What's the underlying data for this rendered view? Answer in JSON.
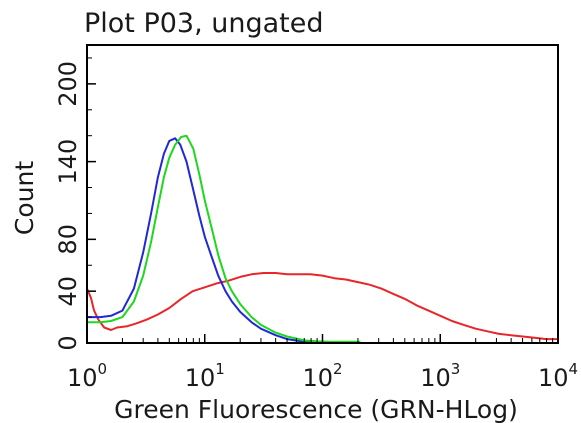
{
  "chart_data": {
    "type": "line",
    "title": "Plot P03, ungated",
    "xlabel": "Green Fluorescence (GRN-HLog)",
    "ylabel": "Count",
    "x_scale": "log",
    "xlim": [
      1,
      10000
    ],
    "ylim": [
      0,
      230
    ],
    "x_ticks": [
      {
        "base": "10",
        "exp": "0",
        "value": 1
      },
      {
        "base": "10",
        "exp": "1",
        "value": 10
      },
      {
        "base": "10",
        "exp": "2",
        "value": 100
      },
      {
        "base": "10",
        "exp": "3",
        "value": 1000
      },
      {
        "base": "10",
        "exp": "4",
        "value": 10000
      }
    ],
    "y_ticks": [
      {
        "label": "0",
        "value": 0
      },
      {
        "label": "40",
        "value": 40
      },
      {
        "label": "80",
        "value": 80
      },
      {
        "label": "140",
        "value": 140
      },
      {
        "label": "200",
        "value": 200
      }
    ],
    "grid": false,
    "legend": "none",
    "series": [
      {
        "color": "#e8262a",
        "points": [
          [
            1,
            42
          ],
          [
            1.08,
            35
          ],
          [
            1.15,
            25
          ],
          [
            1.25,
            18
          ],
          [
            1.4,
            12
          ],
          [
            1.6,
            10
          ],
          [
            1.8,
            12
          ],
          [
            2.2,
            13
          ],
          [
            2.6,
            15
          ],
          [
            3.2,
            18
          ],
          [
            4,
            22
          ],
          [
            5,
            27
          ],
          [
            6.3,
            34
          ],
          [
            7.9,
            40
          ],
          [
            10,
            43
          ],
          [
            12.6,
            46
          ],
          [
            15.8,
            48
          ],
          [
            20,
            51
          ],
          [
            25,
            53
          ],
          [
            31.6,
            54
          ],
          [
            40,
            54
          ],
          [
            50,
            53
          ],
          [
            63,
            53
          ],
          [
            79,
            53
          ],
          [
            100,
            52
          ],
          [
            126,
            50
          ],
          [
            158,
            49
          ],
          [
            200,
            47
          ],
          [
            251,
            45
          ],
          [
            316,
            42
          ],
          [
            398,
            38
          ],
          [
            501,
            34
          ],
          [
            631,
            29
          ],
          [
            794,
            25
          ],
          [
            1000,
            21
          ],
          [
            1259,
            17
          ],
          [
            1585,
            14
          ],
          [
            2000,
            11
          ],
          [
            2512,
            9
          ],
          [
            3162,
            7
          ],
          [
            3981,
            6
          ],
          [
            5012,
            5
          ],
          [
            6310,
            4
          ],
          [
            7943,
            3
          ],
          [
            10000,
            3
          ]
        ]
      },
      {
        "color": "#2028d8",
        "points": [
          [
            1,
            20
          ],
          [
            1.3,
            20
          ],
          [
            1.6,
            21
          ],
          [
            2,
            25
          ],
          [
            2.5,
            42
          ],
          [
            3,
            70
          ],
          [
            3.5,
            100
          ],
          [
            4,
            128
          ],
          [
            4.5,
            146
          ],
          [
            5,
            156
          ],
          [
            5.6,
            158
          ],
          [
            6.2,
            153
          ],
          [
            7,
            140
          ],
          [
            8,
            118
          ],
          [
            9,
            98
          ],
          [
            10,
            82
          ],
          [
            11.5,
            66
          ],
          [
            13,
            52
          ],
          [
            15,
            40
          ],
          [
            17,
            32
          ],
          [
            20,
            24
          ],
          [
            25,
            16
          ],
          [
            30,
            11
          ],
          [
            40,
            6
          ],
          [
            50,
            3
          ],
          [
            70,
            1
          ],
          [
            100,
            1
          ],
          [
            200,
            0
          ]
        ]
      },
      {
        "color": "#1ed81e",
        "points": [
          [
            1,
            16
          ],
          [
            1.3,
            16
          ],
          [
            1.6,
            17
          ],
          [
            2,
            20
          ],
          [
            2.5,
            32
          ],
          [
            3,
            52
          ],
          [
            3.5,
            78
          ],
          [
            4,
            105
          ],
          [
            4.5,
            128
          ],
          [
            5,
            143
          ],
          [
            5.6,
            153
          ],
          [
            6.3,
            159
          ],
          [
            7,
            160
          ],
          [
            8,
            150
          ],
          [
            9,
            130
          ],
          [
            10,
            110
          ],
          [
            11.5,
            88
          ],
          [
            13,
            68
          ],
          [
            15,
            50
          ],
          [
            17,
            40
          ],
          [
            20,
            30
          ],
          [
            25,
            20
          ],
          [
            30,
            14
          ],
          [
            40,
            8
          ],
          [
            50,
            5
          ],
          [
            70,
            2
          ],
          [
            100,
            1
          ],
          [
            150,
            1
          ],
          [
            210,
            1
          ]
        ]
      }
    ]
  }
}
